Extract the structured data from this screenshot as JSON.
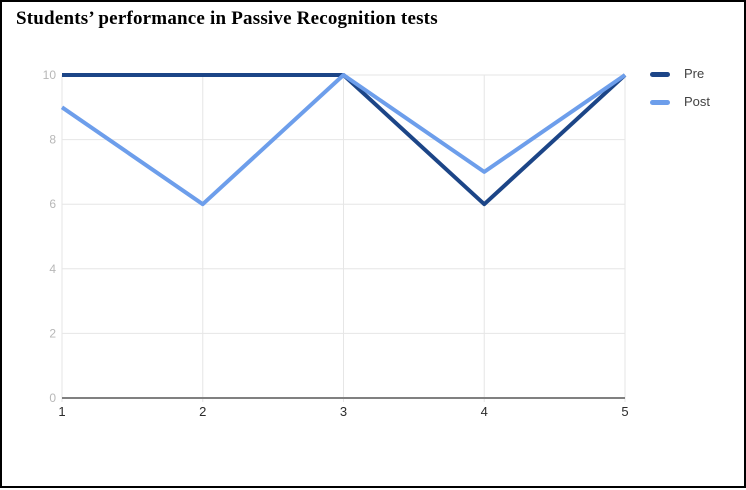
{
  "title": "Students’ performance in Passive Recognition tests",
  "legend": {
    "position": "right",
    "items": [
      {
        "label": "Pre",
        "color": "#1c4587"
      },
      {
        "label": "Post",
        "color": "#6d9eeb"
      }
    ]
  },
  "chart_data": {
    "type": "line",
    "title": "Students’ performance in Passive Recognition tests",
    "x": [
      1,
      2,
      3,
      4,
      5
    ],
    "x_tick_labels": [
      "1",
      "2",
      "3",
      "4",
      "5"
    ],
    "series": [
      {
        "name": "Pre",
        "color": "#1c4587",
        "values": [
          10,
          10,
          10,
          6,
          10
        ]
      },
      {
        "name": "Post",
        "color": "#6d9eeb",
        "values": [
          9,
          6,
          10,
          7,
          10
        ]
      }
    ],
    "xlabel": "",
    "ylabel": "",
    "ylim": [
      0,
      10
    ],
    "yticks": [
      0,
      2,
      4,
      6,
      8,
      10
    ],
    "grid": true,
    "legend_position": "right"
  },
  "style": {
    "grid_color": "#e6e6e6",
    "baseline_color": "#808080",
    "y_tick_label_color": "#b7b7b7",
    "x_tick_label_color": "#2b2b2b",
    "line_width": 4
  }
}
